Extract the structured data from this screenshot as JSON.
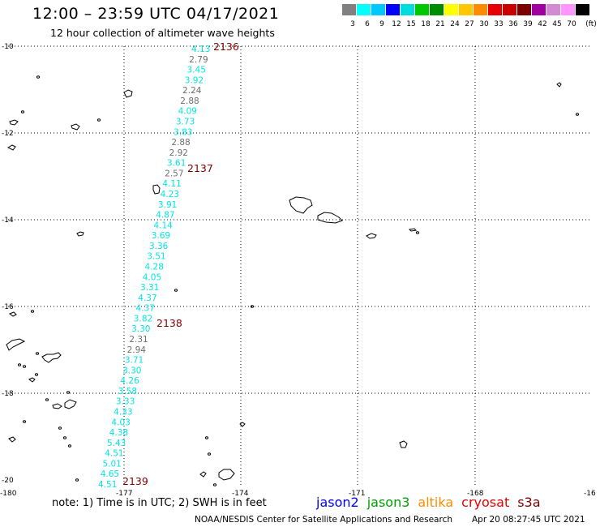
{
  "title": "12:00 – 23:59 UTC 04/17/2021",
  "subtitle": "12 hour collection of altimeter wave heights",
  "scale": {
    "colors": [
      "#808080",
      "#00ffff",
      "#00c8ff",
      "#0000ff",
      "#00dcdc",
      "#00c800",
      "#008c00",
      "#ffff00",
      "#ffc800",
      "#ff8c00",
      "#e60000",
      "#c80000",
      "#7d0000",
      "#a000a0",
      "#d28cd2",
      "#ff96ff",
      "#000000"
    ],
    "labels": [
      "3",
      "6",
      "9",
      "12",
      "15",
      "18",
      "21",
      "24",
      "27",
      "30",
      "33",
      "36",
      "39",
      "42",
      "45",
      "70",
      "(ft)"
    ]
  },
  "axes": {
    "lat_labels": [
      "-10",
      "-12",
      "-14",
      "-16",
      "-18",
      "-20"
    ],
    "lon_labels": [
      "-180",
      "-177",
      "-174",
      "-171",
      "-168",
      "-16"
    ]
  },
  "passes": [
    "2136",
    "2137",
    "2138",
    "2139"
  ],
  "wave_heights": [
    {
      "v": "4.13",
      "c": "cyan"
    },
    {
      "v": "2.79",
      "c": "gray"
    },
    {
      "v": "3.45",
      "c": "cyan"
    },
    {
      "v": "3.92",
      "c": "cyan"
    },
    {
      "v": "2.24",
      "c": "gray"
    },
    {
      "v": "2.88",
      "c": "gray"
    },
    {
      "v": "4.09",
      "c": "cyan"
    },
    {
      "v": "3.73",
      "c": "cyan"
    },
    {
      "v": "3.83",
      "c": "cyan"
    },
    {
      "v": "2.88",
      "c": "gray"
    },
    {
      "v": "2.92",
      "c": "gray"
    },
    {
      "v": "3.61",
      "c": "cyan"
    },
    {
      "v": "2.57",
      "c": "gray"
    },
    {
      "v": "4.11",
      "c": "cyan"
    },
    {
      "v": "4.23",
      "c": "cyan"
    },
    {
      "v": "3.91",
      "c": "cyan"
    },
    {
      "v": "4.87",
      "c": "cyan"
    },
    {
      "v": "4.14",
      "c": "cyan"
    },
    {
      "v": "3.69",
      "c": "cyan"
    },
    {
      "v": "3.36",
      "c": "cyan"
    },
    {
      "v": "3.51",
      "c": "cyan"
    },
    {
      "v": "4.28",
      "c": "cyan"
    },
    {
      "v": "4.05",
      "c": "cyan"
    },
    {
      "v": "3.31",
      "c": "cyan"
    },
    {
      "v": "4.37",
      "c": "cyan"
    },
    {
      "v": "4.37",
      "c": "cyan"
    },
    {
      "v": "3.82",
      "c": "cyan"
    },
    {
      "v": "3.30",
      "c": "cyan"
    },
    {
      "v": "2.31",
      "c": "gray"
    },
    {
      "v": "2.94",
      "c": "gray"
    },
    {
      "v": "3.71",
      "c": "cyan"
    },
    {
      "v": "3.30",
      "c": "cyan"
    },
    {
      "v": "4.26",
      "c": "cyan"
    },
    {
      "v": "3.58",
      "c": "cyan"
    },
    {
      "v": "3.33",
      "c": "cyan"
    },
    {
      "v": "4.33",
      "c": "cyan"
    },
    {
      "v": "4.03",
      "c": "cyan"
    },
    {
      "v": "4.38",
      "c": "cyan"
    },
    {
      "v": "5.43",
      "c": "cyan"
    },
    {
      "v": "4.51",
      "c": "cyan"
    },
    {
      "v": "5.01",
      "c": "cyan"
    },
    {
      "v": "4.65",
      "c": "cyan"
    },
    {
      "v": "4.51",
      "c": "cyan"
    }
  ],
  "colors": {
    "cyan": "#00e5e5",
    "gray": "#6e6e6e",
    "pass": "#7d0000"
  },
  "note": "note: 1) Time is in UTC; 2) SWH is in feet",
  "legend": [
    {
      "name": "jason2",
      "color": "#0000ff"
    },
    {
      "name": "jason3",
      "color": "#00a000"
    },
    {
      "name": "altika",
      "color": "#ff8c00"
    },
    {
      "name": "cryosat",
      "color": "#e60000"
    },
    {
      "name": "s3a",
      "color": "#7d0000"
    }
  ],
  "credit": "NOAA/NESDIS Center for Satellite Applications and Research",
  "timestamp": "Apr 20 08:27:45 UTC 2021"
}
